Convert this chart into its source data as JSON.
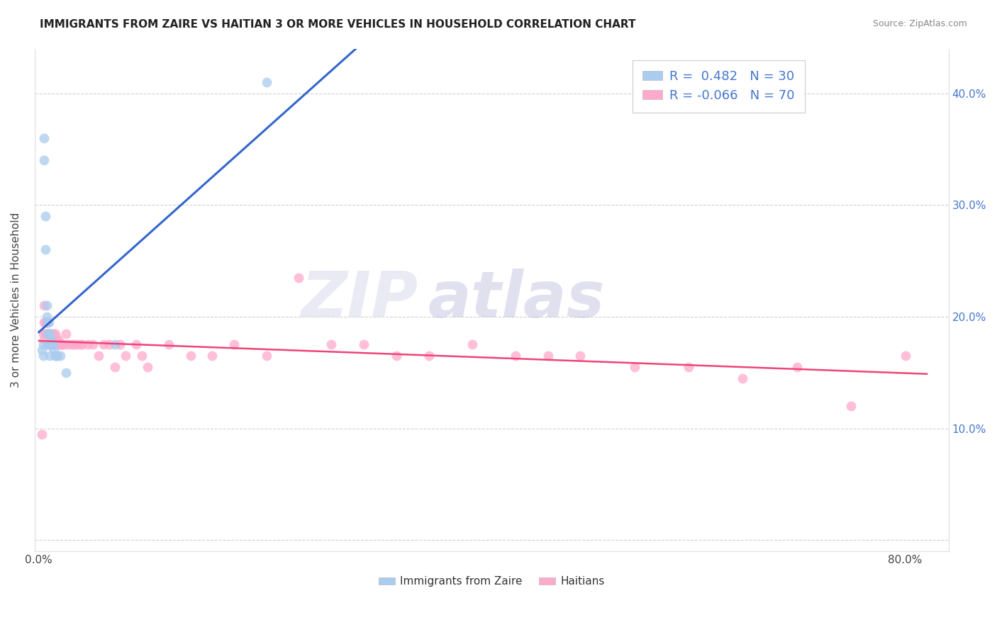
{
  "title": "IMMIGRANTS FROM ZAIRE VS HAITIAN 3 OR MORE VEHICLES IN HOUSEHOLD CORRELATION CHART",
  "source": "Source: ZipAtlas.com",
  "ylabel": "3 or more Vehicles in Household",
  "xlim": [
    -0.004,
    0.84
  ],
  "ylim": [
    -0.01,
    0.44
  ],
  "x_tick_positions": [
    0.0,
    0.1,
    0.2,
    0.3,
    0.4,
    0.5,
    0.6,
    0.7,
    0.8
  ],
  "x_tick_labels": [
    "0.0%",
    "",
    "",
    "",
    "",
    "",
    "",
    "",
    "80.0%"
  ],
  "y_tick_positions": [
    0.0,
    0.1,
    0.2,
    0.3,
    0.4
  ],
  "y_tick_labels_right": [
    "",
    "10.0%",
    "20.0%",
    "30.0%",
    "40.0%"
  ],
  "legend_R1": "0.482",
  "legend_N1": "30",
  "legend_R2": "-0.066",
  "legend_N2": "70",
  "color_blue": "#AACCEE",
  "color_pink": "#FFAACC",
  "color_blue_line": "#3366CC",
  "color_pink_line": "#EE4477",
  "background_color": "#FFFFFF",
  "grid_color": "#CCCCCC",
  "zaire_x": [
    0.003,
    0.004,
    0.004,
    0.005,
    0.005,
    0.006,
    0.006,
    0.007,
    0.007,
    0.008,
    0.008,
    0.008,
    0.009,
    0.009,
    0.009,
    0.01,
    0.01,
    0.01,
    0.011,
    0.011,
    0.012,
    0.013,
    0.014,
    0.015,
    0.016,
    0.017,
    0.02,
    0.025,
    0.07,
    0.21
  ],
  "zaire_y": [
    0.17,
    0.165,
    0.175,
    0.36,
    0.34,
    0.29,
    0.26,
    0.21,
    0.2,
    0.195,
    0.185,
    0.175,
    0.195,
    0.185,
    0.175,
    0.185,
    0.175,
    0.165,
    0.18,
    0.175,
    0.175,
    0.175,
    0.17,
    0.165,
    0.165,
    0.165,
    0.165,
    0.15,
    0.175,
    0.41
  ],
  "haitian_x": [
    0.003,
    0.004,
    0.005,
    0.005,
    0.005,
    0.006,
    0.006,
    0.007,
    0.007,
    0.007,
    0.008,
    0.008,
    0.009,
    0.009,
    0.01,
    0.01,
    0.011,
    0.011,
    0.012,
    0.012,
    0.013,
    0.014,
    0.015,
    0.015,
    0.016,
    0.017,
    0.018,
    0.019,
    0.02,
    0.021,
    0.022,
    0.023,
    0.025,
    0.027,
    0.03,
    0.032,
    0.035,
    0.038,
    0.04,
    0.045,
    0.05,
    0.055,
    0.06,
    0.065,
    0.07,
    0.075,
    0.08,
    0.09,
    0.1,
    0.12,
    0.14,
    0.16,
    0.18,
    0.21,
    0.24,
    0.27,
    0.3,
    0.33,
    0.36,
    0.4,
    0.44,
    0.47,
    0.5,
    0.55,
    0.6,
    0.65,
    0.7,
    0.75,
    0.8,
    0.095
  ],
  "haitian_y": [
    0.095,
    0.185,
    0.21,
    0.195,
    0.18,
    0.195,
    0.185,
    0.195,
    0.185,
    0.175,
    0.185,
    0.175,
    0.185,
    0.175,
    0.185,
    0.175,
    0.185,
    0.175,
    0.18,
    0.175,
    0.185,
    0.18,
    0.175,
    0.185,
    0.18,
    0.175,
    0.18,
    0.175,
    0.175,
    0.175,
    0.175,
    0.175,
    0.185,
    0.175,
    0.175,
    0.175,
    0.175,
    0.175,
    0.175,
    0.175,
    0.175,
    0.165,
    0.175,
    0.175,
    0.155,
    0.175,
    0.165,
    0.175,
    0.155,
    0.175,
    0.165,
    0.165,
    0.175,
    0.165,
    0.235,
    0.175,
    0.175,
    0.165,
    0.165,
    0.175,
    0.165,
    0.165,
    0.165,
    0.155,
    0.155,
    0.145,
    0.155,
    0.12,
    0.165,
    0.165
  ]
}
